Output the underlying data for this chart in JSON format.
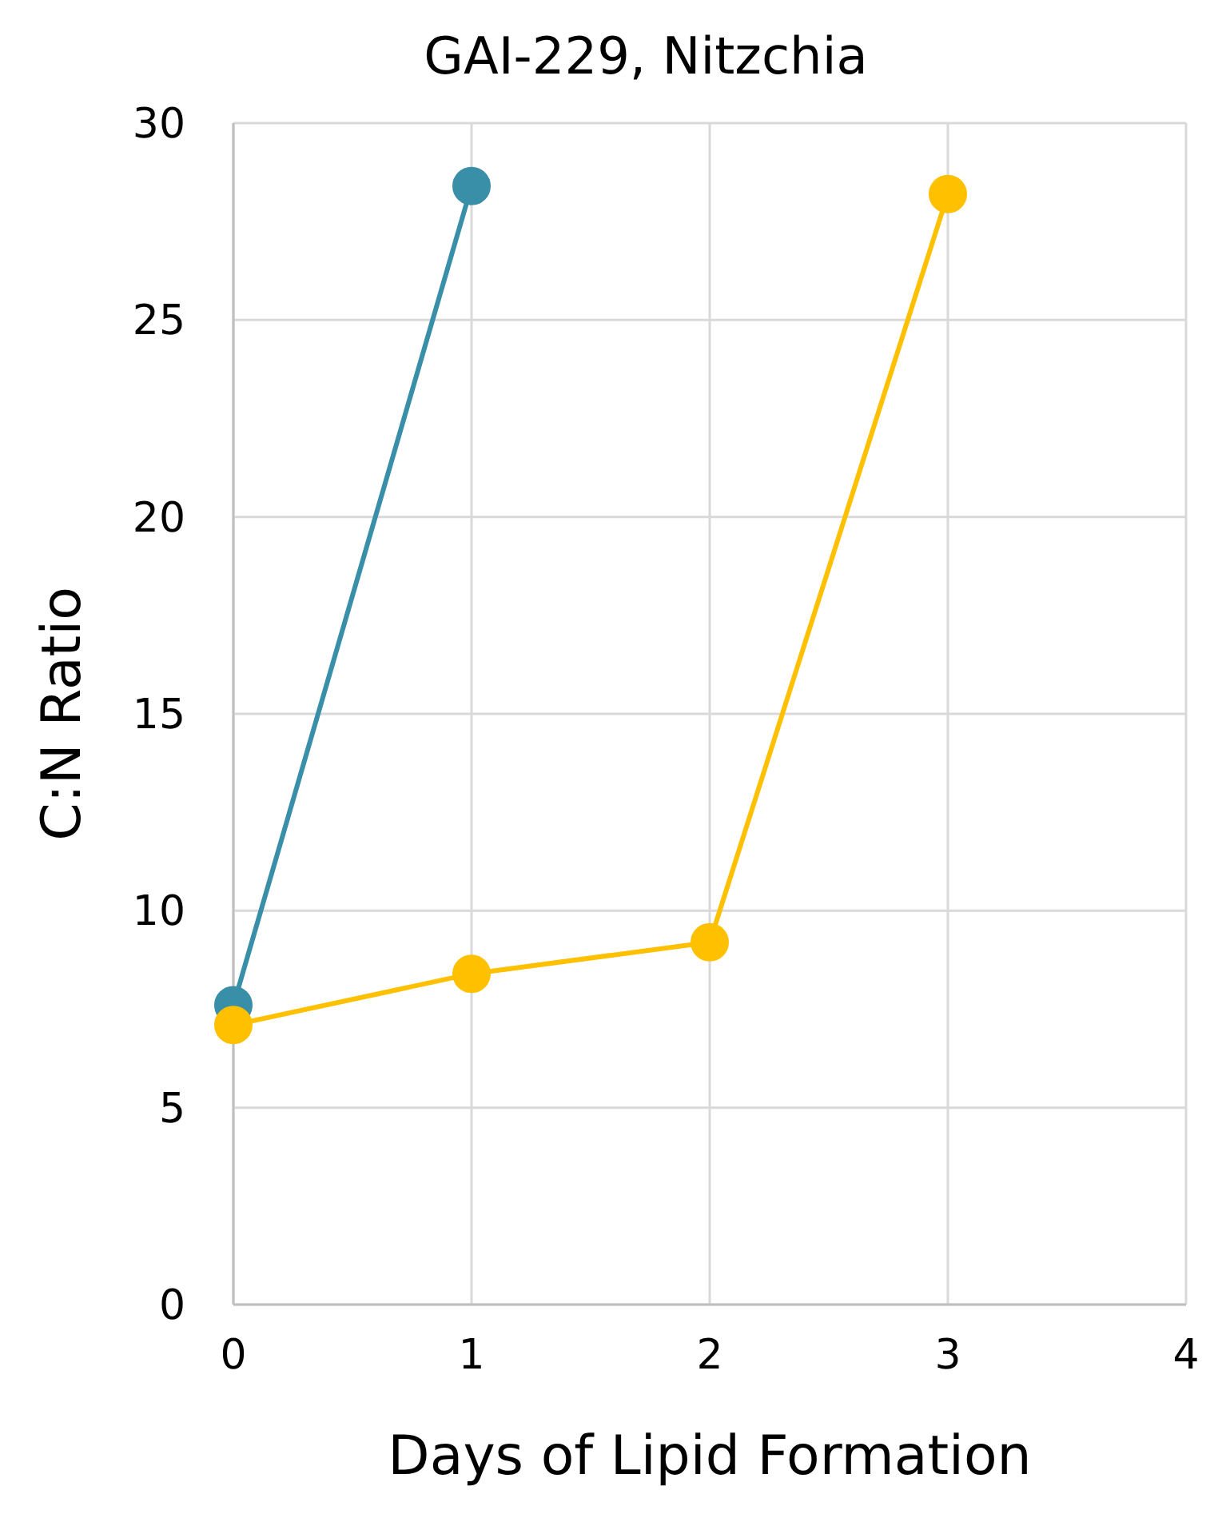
{
  "chart_data": {
    "type": "line",
    "title": "GAI-229, Nitzchia",
    "xlabel": "Days of Lipid Formation",
    "ylabel": "C:N Ratio",
    "xlim": [
      0,
      4
    ],
    "xticks": [
      0,
      1,
      2,
      3,
      4
    ],
    "ylim": [
      0,
      30
    ],
    "yticks": [
      0,
      5,
      10,
      15,
      20,
      25,
      30
    ],
    "grid": true,
    "marker": "circle",
    "line_style": "solid",
    "series": [
      {
        "color": "#3a8fa8",
        "x": [
          0,
          1
        ],
        "values": [
          7.6,
          28.4
        ]
      },
      {
        "color": "#ffc000",
        "x": [
          0,
          1,
          2,
          3
        ],
        "values": [
          7.1,
          8.4,
          9.2,
          28.2
        ]
      }
    ]
  }
}
